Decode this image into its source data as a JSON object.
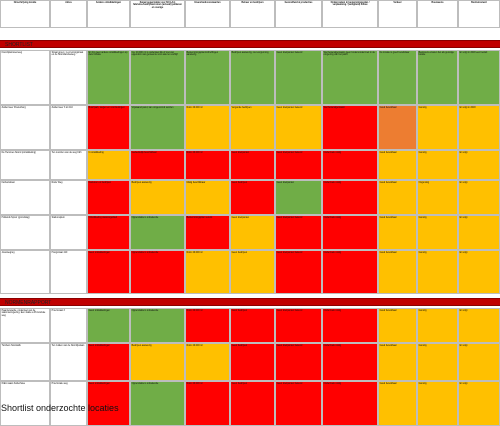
{
  "headers": [
    "Omschrijving locatie",
    "Adres",
    "Andere ontwikkelingen",
    "Kwaal opperviakte voor 66 (LAs) fabrieks-/bedrijfsterreinen (actueel) parkeren en overige",
    "Eisen/randvoorwaarden",
    "Beheer en bedrijven",
    "Gezondheid & producties",
    "Onderzoeken in bestemmingsplan / verplaatsing / (veiligheid) milieu",
    "Verkeer",
    "Bouwwens",
    "Beslismoment"
  ],
  "sections": [
    {
      "title": "SHORTLIST",
      "rows": [
        {
          "cells": [
            "Noordplantsoenweg",
            "Straat groen: 1 en koningstraat en de Noordlandseweg",
            "Er zijn geen andere ontwikkelingen op deze locatie",
            "Ca. 20.000 m² is onderdeel ikk of niet van eigendom van gemeente voor asiel en verblijf",
            "Bestemmingsplan/ontheffingen aanwezig",
            "Bedrijven aanwezig, niet vergunning",
            "Geen knelpunten bekend",
            "Wel bekendgemaakt, geen bodemonderzoek in de omgeving van het pand",
            "De locatie is goed bereikbaar",
            "Bewoners ervaren het als gunstige locatie",
            "Er volgt in 2018 een besluit"
          ],
          "colors": [
            "w",
            "w",
            "g",
            "g",
            "g",
            "g",
            "g",
            "g",
            "g",
            "g",
            "g"
          ]
        },
        {
          "cells": [
            "Zuidermeer Poelenburg",
            "Zuidermeer 3 tot 110",
            "Buurtpark, wegen en voorzieningen",
            "Vrijstaand pand, kan omgevormd worden",
            "Ruim 20.000 m²",
            "Vergunde bedrijven",
            "Geen knelpunten bekend",
            "Wel bekendgemaakt",
            "Goed bereikbaar",
            "Gunstig",
            "Er volgt in 2018"
          ],
          "colors": [
            "w",
            "w",
            "r",
            "g",
            "y",
            "y",
            "y",
            "r",
            "o",
            "y",
            "y"
          ]
        },
        {
          "cells": [
            "De Hemmes Noord (ontwikkeling)",
            "Ten noorden van de weg Kdh",
            "In ontwikkeling",
            "Gedeeltelijk beschikbaar",
            "Ruim 20.000 m²",
            "Geen knelpunten",
            "Geen knelpunten bekend",
            "Onderzoek nodig",
            "Goed bereikbaar",
            "Gunstig",
            "Er volgt"
          ],
          "colors": [
            "w",
            "w",
            "y",
            "r",
            "r",
            "r",
            "r",
            "r",
            "y",
            "y",
            "y"
          ]
        },
        {
          "cells": [
            "Farbazstraat",
            "Rode Weg",
            "Kantoren en bedrijven",
            "Bedrijven aanwezig",
            "Matig beschikbaar",
            "Geen bedrijven",
            "Geen knelpunten",
            "Onderzoek nodig",
            "Goed bereikbaar",
            "Ongunstig",
            "Er volgt"
          ],
          "colors": [
            "w",
            "w",
            "r",
            "y",
            "y",
            "r",
            "g",
            "r",
            "y",
            "y",
            "y"
          ]
        },
        {
          "cells": [
            "Hollands Spoor (grondslag)",
            "Stationsplein",
            "Ontwikkeling stationsgebied",
            "Oppervlakte is onbekende",
            "Bestemmingsplan vereist",
            "Geen knelpunten",
            "Geen knelpunten bekend",
            "Onderzoek nodig",
            "Goed bereikbaar",
            "Gunstig",
            "Er volgt"
          ],
          "colors": [
            "w",
            "w",
            "r",
            "g",
            "r",
            "y",
            "r",
            "r",
            "y",
            "y",
            "y"
          ]
        },
        {
          "cells": [
            "Jouwwegrug",
            "Hoogstraat 410",
            "Geen ontwikkelingen",
            "Oppervlakte is onbekende",
            "Ruim 20.000 m²",
            "Geen bedrijven",
            "Geen knelpunten bekend",
            "Onderzoek nodig",
            "Goed bereikbaar",
            "Gunstig",
            "Er volgt"
          ],
          "colors": [
            "w",
            "w",
            "r",
            "r",
            "y",
            "y",
            "r",
            "r",
            "y",
            "y",
            "y"
          ]
        }
      ]
    },
    {
      "title": "NORMENRAPPORT",
      "rows": [
        {
          "cells": [
            "Paardenweide, onderdeel van de stationsomgeving. Een vlakte a Provinciale weg",
            "Provinciaal 3",
            "Geen ontwikkelingen",
            "Oppervlakte is onbekende",
            "Ruim 20.000 m²",
            "Geen bedrijven",
            "Geen knelpunten bekend",
            "Onderzoek nodig",
            "Goed bereikbaar",
            "Gunstig",
            "Er volgt"
          ],
          "colors": [
            "w",
            "w",
            "g",
            "g",
            "r",
            "r",
            "r",
            "r",
            "y",
            "y",
            "y"
          ]
        },
        {
          "cells": [
            "Tuinbers Noordeilk",
            "Ten zuiden van de Noorrijkslaan",
            "Geen ontwikkelingen",
            "Bedrijven aanwezig",
            "Ruim 20.000 m²",
            "Geen bedrijven",
            "Geen knelpunten bekend",
            "Onderzoek nodig",
            "Goed bereikbaar",
            "Gunstig",
            "Er volgt"
          ],
          "colors": [
            "w",
            "w",
            "r",
            "y",
            "y",
            "r",
            "r",
            "r",
            "y",
            "y",
            "y"
          ]
        },
        {
          "cells": [
            "IKEA naast Zuiderhave",
            "Provinciale weg",
            "Geen ontwikkelingen",
            "Oppervlakte is onbekende",
            "Ruim 20.000 m²",
            "Geen bedrijven",
            "Geen knelpunten bekend",
            "Onderzoek nodig",
            "Goed bereikbaar",
            "Gunstig",
            "Er volgt"
          ],
          "colors": [
            "w",
            "w",
            "r",
            "g",
            "r",
            "r",
            "r",
            "r",
            "y",
            "y",
            "y"
          ]
        }
      ]
    }
  ],
  "caption": "Shortlist onderzochte locaties"
}
